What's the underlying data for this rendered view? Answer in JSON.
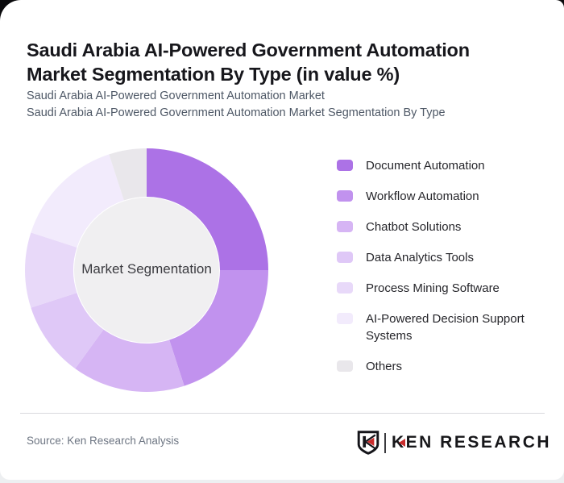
{
  "header": {
    "title": "Saudi Arabia AI-Powered Government Automation Market Segmentation By Type (in value %)",
    "subtitle_line1": "Saudi Arabia AI-Powered Government Automation Market",
    "subtitle_line2": "Saudi Arabia AI-Powered Government Automation Market Segmentation By Type"
  },
  "chart_data": {
    "type": "pie",
    "variant": "donut",
    "title": "Saudi Arabia AI-Powered Government Automation Market Segmentation By Type (in value %)",
    "unit": "value %",
    "center_label": "Market Segmentation",
    "legend_position": "right",
    "start_angle_deg": 0,
    "direction": "clockwise",
    "categories": [
      "Document Automation",
      "Workflow Automation",
      "Chatbot Solutions",
      "Data Analytics Tools",
      "Process Mining Software",
      "AI-Powered Decision Support Systems",
      "Others"
    ],
    "values": [
      25,
      20,
      15,
      10,
      10,
      15,
      5
    ],
    "colors": [
      "#ac72e6",
      "#c192ee",
      "#d6b5f4",
      "#dfc8f7",
      "#e8d9f9",
      "#f2ebfc",
      "#e9e7eb"
    ],
    "inner_circle_color": "#f0eff1"
  },
  "footer": {
    "source": "Source: Ken Research Analysis",
    "logo": {
      "brand": "KEN RESEARCH",
      "badge_letter": "K",
      "accent_color": "#c92c2c"
    }
  }
}
